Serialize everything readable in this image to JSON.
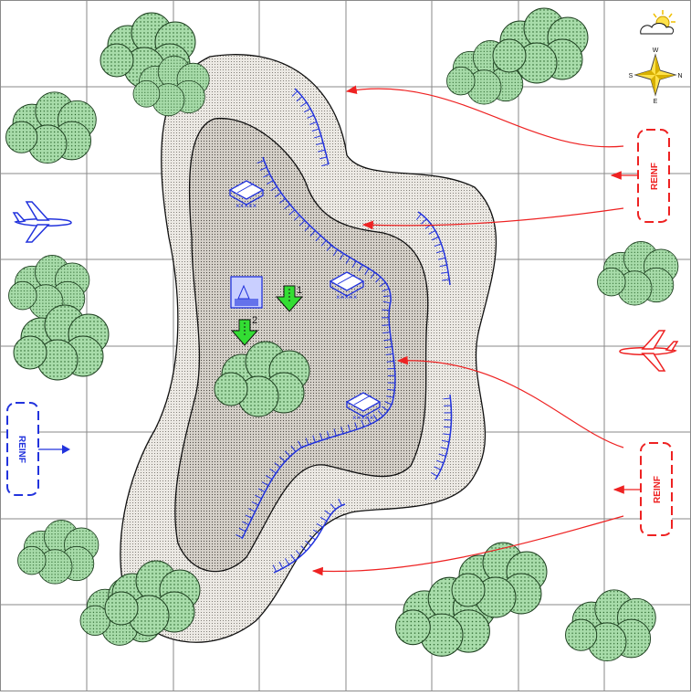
{
  "map": {
    "grid": {
      "rows": 8,
      "cols": 8,
      "color": "#8a8a8a"
    },
    "colors": {
      "friendly": "#2233dd",
      "enemy": "#ee2222",
      "tree_fill": "#a8dcaa",
      "objective": "#33dd33",
      "terrain_outer": "#e6e2dc",
      "terrain_inner": "#cfcac3"
    }
  },
  "weather": {
    "icon": "partly-sunny-icon"
  },
  "compass": {
    "icon": "compass-rose-icon",
    "n": "N",
    "e": "E",
    "s": "S",
    "w": "W"
  },
  "reinforcements": {
    "friendly_west": {
      "label": "REINF",
      "color": "#2233dd"
    },
    "enemy_east_upper": {
      "label": "REINF",
      "color": "#ee2222"
    },
    "enemy_east_lower": {
      "label": "REINF",
      "color": "#ee2222"
    }
  },
  "aircraft": {
    "friendly": {
      "icon": "jet-icon",
      "color": "#2233dd"
    },
    "enemy": {
      "icon": "jet-icon",
      "color": "#ee2222"
    }
  },
  "units": {
    "bunker_1": {
      "icon": "bunker-icon"
    },
    "bunker_2": {
      "icon": "bunker-icon"
    },
    "bunker_3": {
      "icon": "bunker-icon"
    },
    "hq": {
      "icon": "command-post-icon"
    }
  },
  "objectives": [
    {
      "id": "1",
      "icon": "down-arrow-icon"
    },
    {
      "id": "2",
      "icon": "down-arrow-icon"
    }
  ]
}
